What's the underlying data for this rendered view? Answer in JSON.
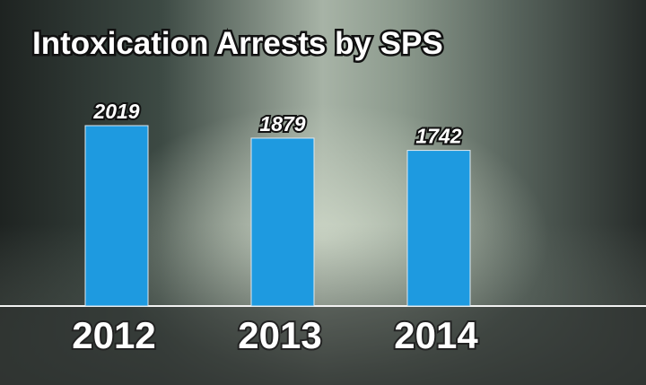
{
  "chart_data": {
    "type": "bar",
    "title": "Intoxication Arrests by SPS",
    "categories": [
      "2012",
      "2013",
      "2014"
    ],
    "values": [
      2019,
      1879,
      1742
    ],
    "color": "#1e9ae0"
  }
}
